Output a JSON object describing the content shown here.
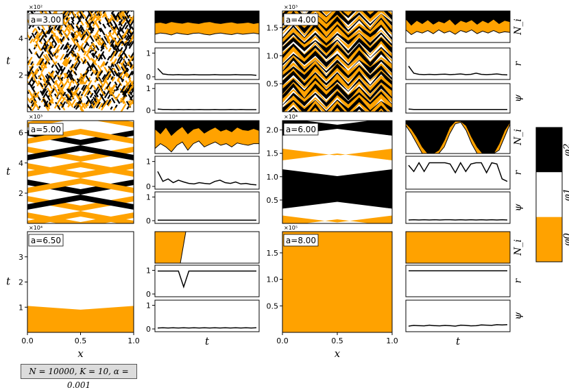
{
  "colors": {
    "phi0": "#ffa200",
    "phi1": "#ffffff",
    "phi2": "#000000"
  },
  "parameters": "N = 10000,   K = 10,  α = 0.001",
  "colorbar": {
    "labels": [
      "φ2",
      "φ1",
      "φ0"
    ]
  },
  "row_labels": {
    "N": "N_i",
    "r": "r",
    "psi": "ψ"
  },
  "chart_data": [
    {
      "type": "heatmap",
      "panel": "a=3.00",
      "annotation": "a=3.00",
      "a": 3.0,
      "xlabel": "",
      "ylabel": "t",
      "x_range": [
        0,
        1
      ],
      "t_range": [
        0,
        550
      ],
      "t_multiplier": "×10²",
      "t_ticks": [
        "2",
        "4"
      ],
      "t_tick_values": [
        200,
        400
      ],
      "pattern": "fine-noise"
    },
    {
      "type": "heatmap",
      "panel": "a=4.00",
      "annotation": "a=4.00",
      "a": 4.0,
      "xlabel": "",
      "ylabel": "",
      "x_range": [
        0,
        1
      ],
      "t_range": [
        0,
        1800
      ],
      "t_multiplier": "×10³",
      "t_ticks": [
        "0.5",
        "1.0",
        "1.5"
      ],
      "t_tick_values": [
        500,
        1000,
        1500
      ],
      "pattern": "zigzag"
    },
    {
      "type": "heatmap",
      "panel": "a=5.00",
      "annotation": "a=5.00",
      "a": 5.0,
      "xlabel": "",
      "ylabel": "t",
      "x_range": [
        0,
        1
      ],
      "t_range": [
        0,
        6800
      ],
      "t_multiplier": "×10³",
      "t_ticks": [
        "2",
        "4",
        "6"
      ],
      "t_tick_values": [
        2000,
        4000,
        6000
      ],
      "pattern": "diagonal-bands"
    },
    {
      "type": "heatmap",
      "panel": "a=6.00",
      "annotation": "a=6.00",
      "a": 6.0,
      "xlabel": "",
      "ylabel": "",
      "x_range": [
        0,
        1
      ],
      "t_range": [
        0,
        22000
      ],
      "t_multiplier": "×10⁴",
      "t_ticks": [
        "0.5",
        "1.0",
        "1.5",
        "2.0"
      ],
      "t_tick_values": [
        5000,
        10000,
        15000,
        20000
      ],
      "pattern": "wide-bands"
    },
    {
      "type": "heatmap",
      "panel": "a=6.50",
      "annotation": "a=6.50",
      "a": 6.5,
      "xlabel": "x",
      "ylabel": "t",
      "x_range": [
        0,
        1
      ],
      "x_ticks": [
        "0.0",
        "0.5",
        "1.0"
      ],
      "t_range": [
        0,
        40000
      ],
      "t_multiplier": "×10⁴",
      "t_ticks": [
        "1",
        "2",
        "3"
      ],
      "t_tick_values": [
        10000,
        20000,
        30000
      ],
      "pattern": "phi0-then-phi1",
      "boundary_t": [
        10500,
        9000,
        10500
      ]
    },
    {
      "type": "heatmap",
      "panel": "a=8.00",
      "annotation": "a=8.00",
      "a": 8.0,
      "xlabel": "x",
      "ylabel": "",
      "x_range": [
        0,
        1
      ],
      "x_ticks": [
        "0.0",
        "0.5",
        "1.0"
      ],
      "t_range": [
        0,
        190000
      ],
      "t_multiplier": "×10⁵",
      "t_ticks": [
        "0.5",
        "1.0",
        "1.5"
      ],
      "t_tick_values": [
        50000,
        100000,
        150000
      ],
      "pattern": "all-phi0"
    },
    {
      "type": "area",
      "panel": "N_i a=3.00",
      "series": [
        {
          "name": "φ0 upper",
          "values": [
            0.62,
            0.64,
            0.6,
            0.66,
            0.63,
            0.61,
            0.65,
            0.62,
            0.6,
            0.64,
            0.66,
            0.62,
            0.6,
            0.63,
            0.65,
            0.61,
            0.62,
            0.64,
            0.6,
            0.63
          ]
        },
        {
          "name": "φ0 lower",
          "values": [
            0.26,
            0.3,
            0.28,
            0.24,
            0.3,
            0.27,
            0.25,
            0.29,
            0.3,
            0.26,
            0.24,
            0.28,
            0.3,
            0.27,
            0.25,
            0.29,
            0.26,
            0.28,
            0.3,
            0.27
          ]
        }
      ]
    },
    {
      "type": "line",
      "panel": "r a=3.00",
      "y_ticks": [
        "0",
        "1"
      ],
      "ylim": [
        0,
        1.1
      ],
      "values": [
        0.35,
        0.12,
        0.09,
        0.08,
        0.09,
        0.08,
        0.08,
        0.09,
        0.08,
        0.08,
        0.08,
        0.09,
        0.08,
        0.08,
        0.08,
        0.09,
        0.08,
        0.08,
        0.08,
        0.06
      ]
    },
    {
      "type": "line",
      "panel": "psi a=3.00",
      "y_ticks": [
        "0",
        "1"
      ],
      "ylim": [
        0,
        1.1
      ],
      "values": [
        0.06,
        0.04,
        0.04,
        0.03,
        0.04,
        0.03,
        0.04,
        0.03,
        0.04,
        0.03,
        0.03,
        0.04,
        0.03,
        0.03,
        0.04,
        0.03,
        0.04,
        0.03,
        0.03,
        0.03
      ]
    },
    {
      "type": "area",
      "panel": "N_i a=4.00",
      "series": [
        {
          "name": "φ0 upper",
          "values": [
            0.75,
            0.55,
            0.7,
            0.6,
            0.72,
            0.58,
            0.68,
            0.62,
            0.74,
            0.56,
            0.7,
            0.64,
            0.72,
            0.58,
            0.7,
            0.62,
            0.74,
            0.6,
            0.7,
            0.66
          ]
        },
        {
          "name": "φ0 lower",
          "values": [
            0.4,
            0.25,
            0.35,
            0.3,
            0.38,
            0.28,
            0.4,
            0.3,
            0.36,
            0.26,
            0.38,
            0.32,
            0.4,
            0.28,
            0.36,
            0.3,
            0.38,
            0.3,
            0.34,
            0.32
          ]
        }
      ]
    },
    {
      "type": "line",
      "panel": "r a=4.00",
      "y_ticks": [],
      "ylim": [
        0,
        1.1
      ],
      "values": [
        0.45,
        0.15,
        0.1,
        0.09,
        0.1,
        0.09,
        0.1,
        0.11,
        0.09,
        0.1,
        0.12,
        0.09,
        0.1,
        0.15,
        0.1,
        0.09,
        0.1,
        0.12,
        0.09,
        0.08
      ]
    },
    {
      "type": "line",
      "panel": "psi a=4.00",
      "y_ticks": [],
      "ylim": [
        0,
        1.1
      ],
      "values": [
        0.06,
        0.04,
        0.04,
        0.04,
        0.04,
        0.04,
        0.04,
        0.04,
        0.04,
        0.04,
        0.04,
        0.04,
        0.04,
        0.04,
        0.04,
        0.04,
        0.04,
        0.04,
        0.04,
        0.04
      ]
    },
    {
      "type": "area",
      "panel": "N_i a=5.00",
      "series": [
        {
          "name": "φ0 upper",
          "values": [
            0.75,
            0.6,
            0.8,
            0.55,
            0.7,
            0.82,
            0.6,
            0.74,
            0.78,
            0.62,
            0.72,
            0.8,
            0.68,
            0.74,
            0.66,
            0.8,
            0.72,
            0.7,
            0.76,
            0.7
          ]
        },
        {
          "name": "φ0 lower",
          "values": [
            0.15,
            0.3,
            0.2,
            0.05,
            0.25,
            0.35,
            0.1,
            0.3,
            0.38,
            0.2,
            0.28,
            0.35,
            0.25,
            0.3,
            0.2,
            0.32,
            0.28,
            0.25,
            0.3,
            0.3
          ]
        }
      ]
    },
    {
      "type": "line",
      "panel": "r a=5.00",
      "y_ticks": [
        "0",
        "1"
      ],
      "ylim": [
        0,
        1.1
      ],
      "values": [
        0.6,
        0.2,
        0.3,
        0.15,
        0.25,
        0.18,
        0.12,
        0.1,
        0.15,
        0.12,
        0.1,
        0.2,
        0.25,
        0.15,
        0.12,
        0.18,
        0.1,
        0.12,
        0.08,
        0.06
      ]
    },
    {
      "type": "line",
      "panel": "psi a=5.00",
      "y_ticks": [
        "0",
        "1"
      ],
      "ylim": [
        0,
        1.1
      ],
      "values": [
        0.02,
        0.02,
        0.02,
        0.02,
        0.02,
        0.02,
        0.02,
        0.02,
        0.02,
        0.02,
        0.02,
        0.02,
        0.02,
        0.02,
        0.02,
        0.02,
        0.02,
        0.02,
        0.02,
        0.02
      ]
    },
    {
      "type": "area",
      "panel": "N_i a=6.00",
      "series": [
        {
          "name": "φ0 upper",
          "values": [
            0.92,
            0.75,
            0.5,
            0.2,
            0.0,
            0.0,
            0.1,
            0.4,
            0.8,
            0.98,
            0.98,
            0.85,
            0.5,
            0.2,
            0.0,
            0.0,
            0.0,
            0.3,
            0.7,
            0.95
          ]
        },
        {
          "name": "φ0 lower",
          "values": [
            0.85,
            0.6,
            0.3,
            0.0,
            0.0,
            0.0,
            0.0,
            0.2,
            0.6,
            0.9,
            0.95,
            0.7,
            0.3,
            0.0,
            0.0,
            0.0,
            0.0,
            0.1,
            0.5,
            0.9
          ]
        }
      ]
    },
    {
      "type": "line",
      "panel": "r a=6.00",
      "y_ticks": [],
      "ylim": [
        0,
        1.1
      ],
      "values": [
        0.85,
        0.6,
        0.95,
        0.6,
        0.95,
        0.95,
        0.95,
        0.95,
        0.9,
        0.55,
        0.95,
        0.6,
        0.9,
        0.95,
        0.95,
        0.55,
        0.95,
        0.9,
        0.3,
        0.2
      ]
    },
    {
      "type": "line",
      "panel": "psi a=6.00",
      "y_ticks": [],
      "ylim": [
        0,
        1.1
      ],
      "values": [
        0.03,
        0.04,
        0.03,
        0.04,
        0.03,
        0.04,
        0.03,
        0.04,
        0.04,
        0.03,
        0.04,
        0.03,
        0.04,
        0.03,
        0.04,
        0.03,
        0.04,
        0.03,
        0.04,
        0.03
      ]
    },
    {
      "type": "area",
      "panel": "N_i a=6.50",
      "series": [
        {
          "name": "φ0 upper",
          "values": [
            1,
            1,
            1,
            1,
            1,
            1,
            1,
            1,
            1,
            1,
            1,
            1,
            1,
            1,
            1,
            1,
            1,
            1,
            1,
            1
          ]
        },
        {
          "name": "φ0 lower",
          "values": [
            0,
            0,
            0,
            0,
            0,
            0,
            0,
            0,
            0,
            0,
            0,
            0,
            0,
            0,
            0,
            0,
            0,
            0,
            0,
            0
          ]
        }
      ],
      "phi0_end_t_fraction": 0.27
    },
    {
      "type": "line",
      "panel": "r a=6.50",
      "y_ticks": [
        "0",
        "1"
      ],
      "ylim": [
        0,
        1.1
      ],
      "values": [
        0.97,
        0.97,
        0.97,
        0.97,
        0.97,
        0.3,
        0.97,
        0.97,
        0.97,
        0.97,
        0.97,
        0.97,
        0.97,
        0.97,
        0.97,
        0.97,
        0.97,
        0.97,
        0.97,
        0.97
      ]
    },
    {
      "type": "line",
      "panel": "psi a=6.50",
      "y_ticks": [
        "0",
        "1"
      ],
      "ylim": [
        0,
        1.1
      ],
      "values": [
        0.04,
        0.05,
        0.04,
        0.05,
        0.04,
        0.05,
        0.04,
        0.05,
        0.04,
        0.05,
        0.04,
        0.05,
        0.04,
        0.05,
        0.04,
        0.05,
        0.04,
        0.05,
        0.04,
        0.05
      ]
    },
    {
      "type": "area",
      "panel": "N_i a=8.00",
      "series": [
        {
          "name": "φ0 upper",
          "values": [
            1,
            1,
            1,
            1,
            1,
            1,
            1,
            1,
            1,
            1,
            1,
            1,
            1,
            1,
            1,
            1,
            1,
            1,
            1,
            1
          ]
        },
        {
          "name": "φ0 lower",
          "values": [
            0,
            0,
            0,
            0,
            0,
            0,
            0,
            0,
            0,
            0,
            0,
            0,
            0,
            0,
            0,
            0,
            0,
            0,
            0,
            0
          ]
        }
      ]
    },
    {
      "type": "line",
      "panel": "r a=8.00",
      "y_ticks": [],
      "ylim": [
        0,
        1.1
      ],
      "values": [
        0.98,
        0.98,
        0.98,
        0.98,
        0.98,
        0.98,
        0.98,
        0.98,
        0.98,
        0.98,
        0.98,
        0.98,
        0.98,
        0.98,
        0.98,
        0.98,
        0.98,
        0.98,
        0.98,
        0.98
      ]
    },
    {
      "type": "line",
      "panel": "psi a=8.00",
      "y_ticks": [],
      "ylim": [
        0,
        1.1
      ],
      "values": [
        0.12,
        0.15,
        0.14,
        0.13,
        0.16,
        0.14,
        0.13,
        0.15,
        0.14,
        0.12,
        0.16,
        0.15,
        0.13,
        0.14,
        0.17,
        0.16,
        0.15,
        0.18,
        0.17,
        0.18
      ]
    }
  ],
  "bottom_labels": {
    "x": "x",
    "t": "t"
  }
}
